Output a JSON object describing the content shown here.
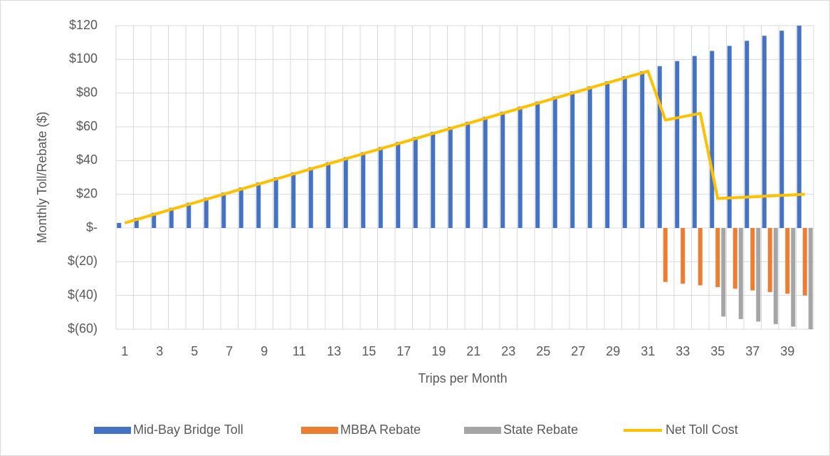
{
  "chart_data": {
    "type": "bar",
    "x_label": "Trips per Month",
    "y_label": "Monthly Toll/Rebate ($)",
    "categories": [
      1,
      null,
      3,
      null,
      5,
      null,
      7,
      null,
      9,
      null,
      11,
      null,
      13,
      null,
      15,
      null,
      17,
      null,
      19,
      null,
      21,
      null,
      23,
      null,
      25,
      null,
      27,
      null,
      29,
      null,
      31,
      null,
      33,
      null,
      35,
      null,
      37,
      null,
      39,
      null
    ],
    "series": [
      {
        "name": "Mid-Bay Bridge Toll",
        "type": "bar",
        "color": "#4472c4",
        "values": [
          3,
          6,
          9,
          12,
          15,
          18,
          21,
          24,
          27,
          30,
          33,
          36,
          39,
          42,
          45,
          48,
          51,
          54,
          57,
          60,
          63,
          66,
          69,
          72,
          75,
          78,
          81,
          84,
          87,
          90,
          93,
          96,
          99,
          102,
          105,
          108,
          111,
          114,
          117,
          120
        ]
      },
      {
        "name": "MBBA Rebate",
        "type": "bar",
        "color": "#ed7d31",
        "values": [
          null,
          null,
          null,
          null,
          null,
          null,
          null,
          null,
          null,
          null,
          null,
          null,
          null,
          null,
          null,
          null,
          null,
          null,
          null,
          null,
          null,
          null,
          null,
          null,
          null,
          null,
          null,
          null,
          null,
          null,
          null,
          -32,
          -33,
          -34,
          -35,
          -36,
          -37,
          -38,
          -39,
          -40
        ]
      },
      {
        "name": "State Rebate",
        "type": "bar",
        "color": "#a5a5a5",
        "values": [
          null,
          null,
          null,
          null,
          null,
          null,
          null,
          null,
          null,
          null,
          null,
          null,
          null,
          null,
          null,
          null,
          null,
          null,
          null,
          null,
          null,
          null,
          null,
          null,
          null,
          null,
          null,
          null,
          null,
          null,
          null,
          null,
          null,
          null,
          -52.5,
          -54,
          -55.5,
          -57,
          -58.5,
          -60
        ]
      },
      {
        "name": "Net Toll Cost",
        "type": "line",
        "color": "#ffc000",
        "values": [
          3,
          6,
          9,
          12,
          15,
          18,
          21,
          24,
          27,
          30,
          33,
          36,
          39,
          42,
          45,
          48,
          51,
          54,
          57,
          60,
          63,
          66,
          69,
          72,
          75,
          78,
          81,
          84,
          87,
          90,
          93,
          64,
          66,
          68,
          17.5,
          18,
          18.5,
          19,
          19.5,
          20
        ]
      }
    ],
    "ylim": [
      -60,
      120
    ],
    "yticks": [
      {
        "value": -60,
        "label": "$(60)"
      },
      {
        "value": -40,
        "label": "$(40)"
      },
      {
        "value": -20,
        "label": "$(20)"
      },
      {
        "value": 0,
        "label": "$-"
      },
      {
        "value": 20,
        "label": "$20"
      },
      {
        "value": 40,
        "label": "$40"
      },
      {
        "value": 60,
        "label": "$60"
      },
      {
        "value": 80,
        "label": "$80"
      },
      {
        "value": 100,
        "label": "$100"
      },
      {
        "value": 120,
        "label": "$120"
      }
    ],
    "grid": true,
    "legend": "bottom"
  }
}
